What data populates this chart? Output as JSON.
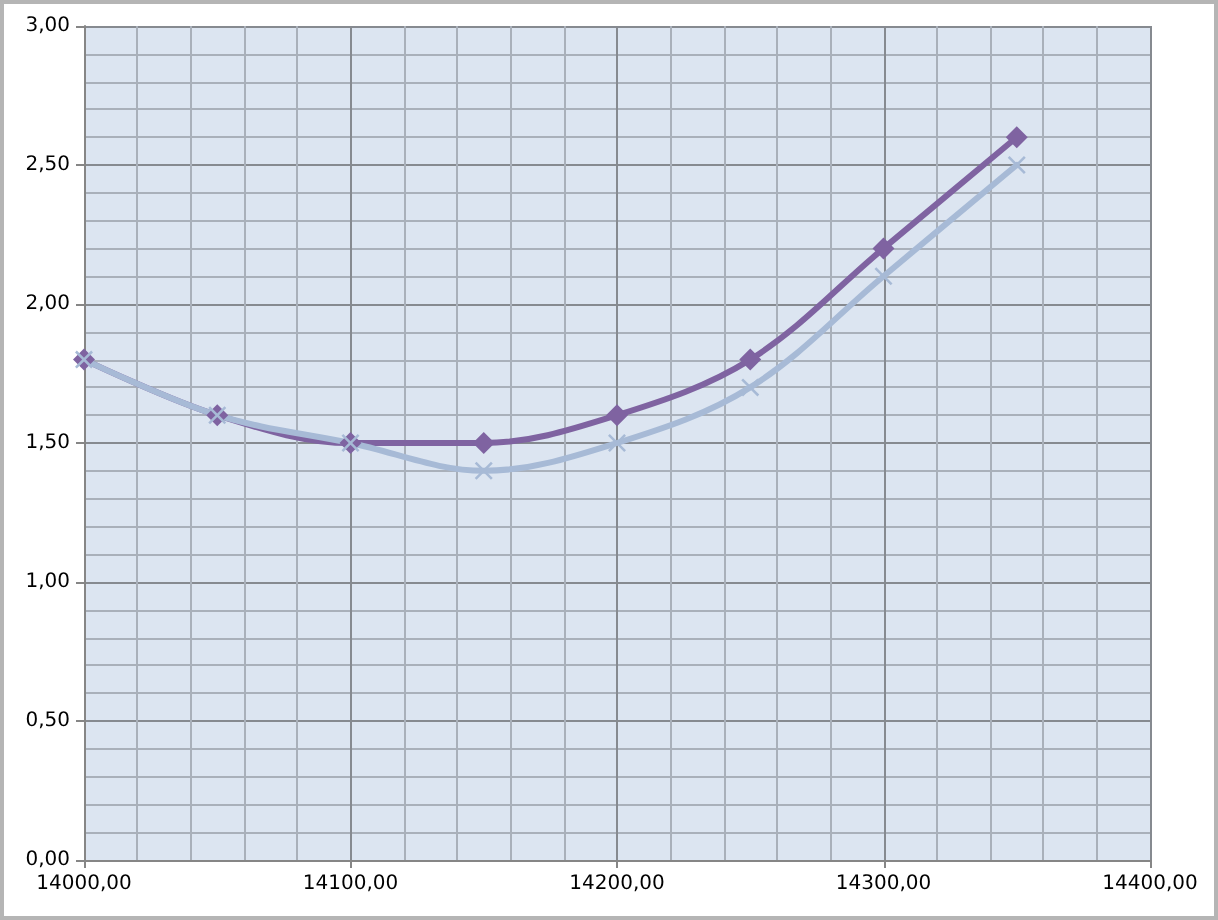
{
  "chart_data": {
    "type": "line",
    "x": [
      14000,
      14050,
      14100,
      14150,
      14200,
      14250,
      14300,
      14350
    ],
    "series": [
      {
        "color": "#7f63a1",
        "marker": "diamond",
        "values": [
          1.8,
          1.6,
          1.5,
          1.5,
          1.6,
          1.8,
          2.2,
          2.6
        ]
      },
      {
        "color": "#a7bad6",
        "marker": "cross",
        "values": [
          1.8,
          1.6,
          1.5,
          1.4,
          1.5,
          1.7,
          2.1,
          2.5
        ]
      }
    ],
    "xlim": [
      14000,
      14400
    ],
    "xticks": [
      {
        "value": 14000,
        "label": "14000,00"
      },
      {
        "value": 14100,
        "label": "14100,00"
      },
      {
        "value": 14200,
        "label": "14200,00"
      },
      {
        "value": 14300,
        "label": "14300,00"
      },
      {
        "value": 14400,
        "label": "14400,00"
      }
    ],
    "ylim": [
      0,
      3
    ],
    "yticks": [
      {
        "value": 0,
        "label": "0,00"
      },
      {
        "value": 0.5,
        "label": "0,50"
      },
      {
        "value": 1,
        "label": "1,00"
      },
      {
        "value": 1.5,
        "label": "1,50"
      },
      {
        "value": 2,
        "label": "2,00"
      },
      {
        "value": 2.5,
        "label": "2,50"
      },
      {
        "value": 3,
        "label": "3,00"
      }
    ],
    "grid": true,
    "line_style": "solid"
  }
}
